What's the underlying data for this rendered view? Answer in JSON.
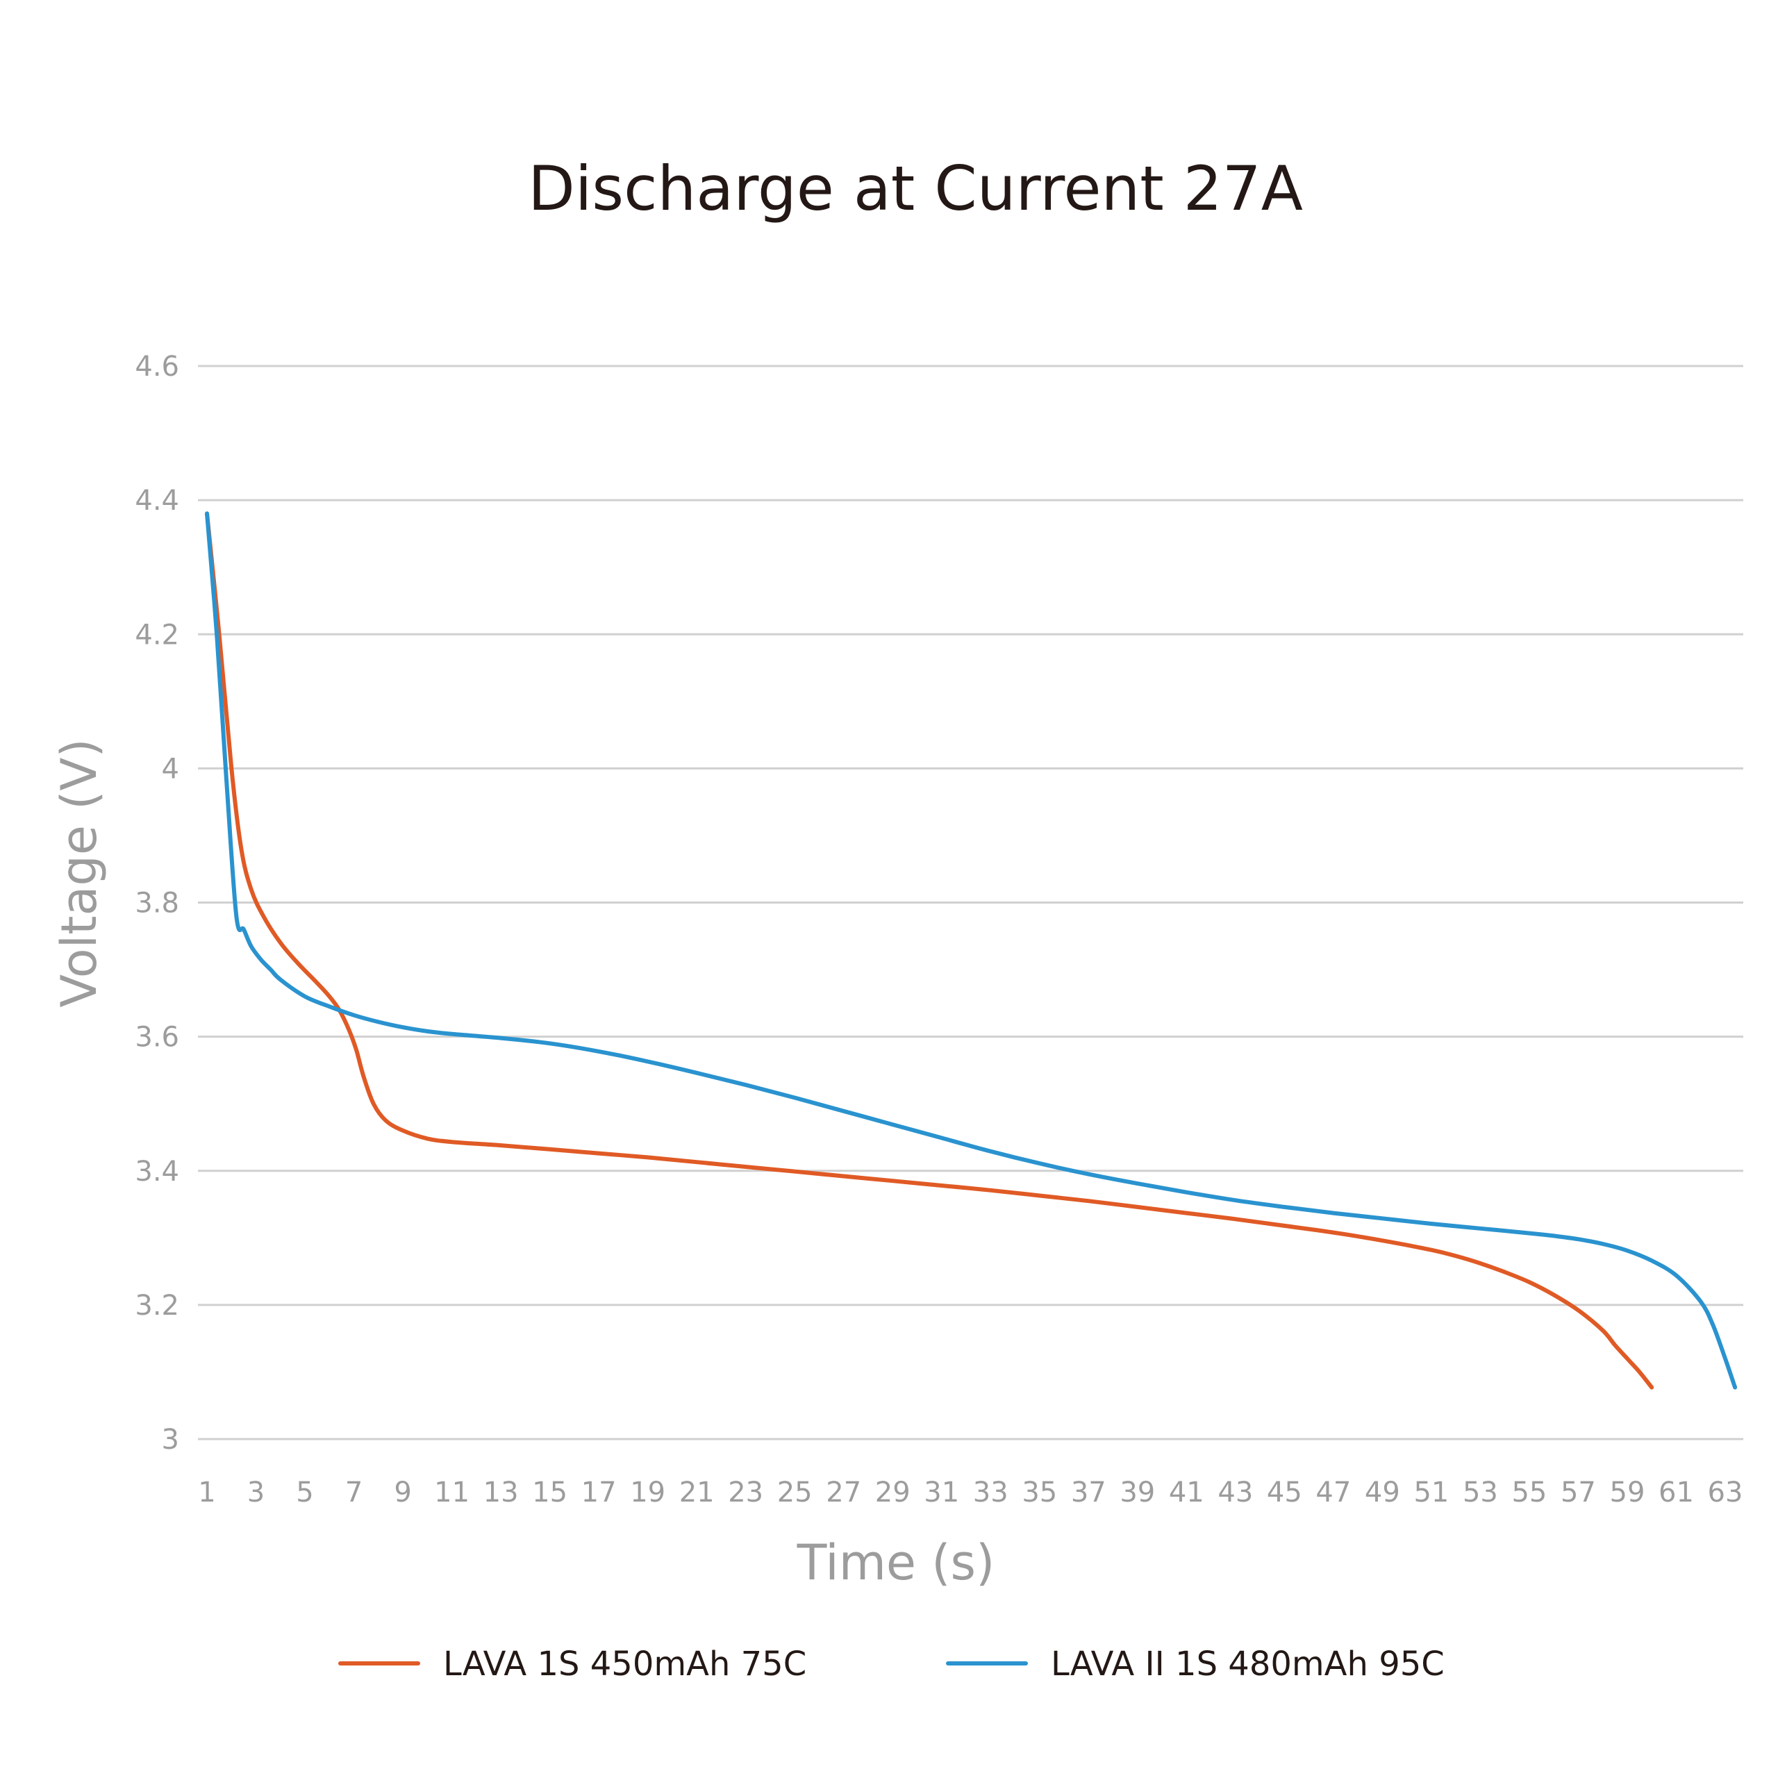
{
  "chart_data": {
    "type": "line",
    "title": "Discharge at Current 27A",
    "xlabel": "Time (s)",
    "ylabel": "Voltage (V)",
    "xlim": [
      1,
      64
    ],
    "ylim": [
      3,
      4.6
    ],
    "grid": true,
    "legend_position": "bottom",
    "x_ticks": [
      "1",
      "3",
      "5",
      "7",
      "9",
      "11",
      "13",
      "15",
      "17",
      "19",
      "21",
      "23",
      "25",
      "27",
      "29",
      "31",
      "33",
      "35",
      "37",
      "39",
      "41",
      "43",
      "45",
      "47",
      "49",
      "51",
      "53",
      "55",
      "57",
      "59",
      "61",
      "63"
    ],
    "y_ticks": [
      "3",
      "3.2",
      "3.4",
      "3.6",
      "3.8",
      "4",
      "4.2",
      "4.4",
      "4.6"
    ],
    "series": [
      {
        "name": "LAVA 1S 450mAh 75C",
        "color": "#e05a25",
        "x": [
          1,
          1.5,
          2,
          2.4,
          2.8,
          3.3,
          4,
          4.7,
          5.5,
          6,
          6.4,
          6.8,
          7.1,
          7.4,
          7.8,
          8.3,
          9,
          10,
          11,
          13,
          15,
          17,
          19,
          21,
          23,
          25,
          27,
          29,
          31,
          33,
          35,
          37,
          39,
          41,
          43,
          45,
          47,
          49,
          51,
          52,
          53,
          54,
          55,
          56,
          57,
          58,
          58.5,
          59,
          59.5,
          60
        ],
        "values": [
          4.38,
          4.2,
          4.0,
          3.88,
          3.82,
          3.78,
          3.74,
          3.71,
          3.68,
          3.66,
          3.64,
          3.61,
          3.58,
          3.54,
          3.5,
          3.475,
          3.46,
          3.448,
          3.443,
          3.438,
          3.432,
          3.426,
          3.42,
          3.413,
          3.406,
          3.399,
          3.392,
          3.385,
          3.378,
          3.371,
          3.363,
          3.355,
          3.346,
          3.337,
          3.328,
          3.318,
          3.308,
          3.296,
          3.282,
          3.273,
          3.262,
          3.249,
          3.234,
          3.215,
          3.192,
          3.162,
          3.14,
          3.12,
          3.1,
          3.077
        ]
      },
      {
        "name": "LAVA II 1S 480mAh 95C",
        "color": "#2a93cf",
        "x": [
          1,
          1.4,
          1.8,
          2.2,
          2.5,
          2.8,
          3.2,
          3.6,
          4,
          5,
          6,
          7,
          8,
          9,
          10,
          11,
          13,
          15,
          17,
          19,
          21,
          23,
          25,
          27,
          29,
          31,
          33,
          35,
          37,
          39,
          41,
          43,
          45,
          47,
          49,
          51,
          53,
          55,
          56,
          57,
          58,
          59,
          60,
          61,
          62,
          62.5,
          63,
          63.4
        ],
        "values": [
          4.38,
          4.2,
          3.98,
          3.78,
          3.76,
          3.735,
          3.715,
          3.7,
          3.685,
          3.66,
          3.645,
          3.632,
          3.622,
          3.614,
          3.608,
          3.604,
          3.598,
          3.59,
          3.578,
          3.563,
          3.546,
          3.528,
          3.509,
          3.489,
          3.469,
          3.449,
          3.429,
          3.411,
          3.395,
          3.381,
          3.368,
          3.356,
          3.346,
          3.337,
          3.329,
          3.321,
          3.314,
          3.307,
          3.303,
          3.298,
          3.291,
          3.281,
          3.266,
          3.244,
          3.205,
          3.17,
          3.12,
          3.077
        ]
      }
    ]
  }
}
